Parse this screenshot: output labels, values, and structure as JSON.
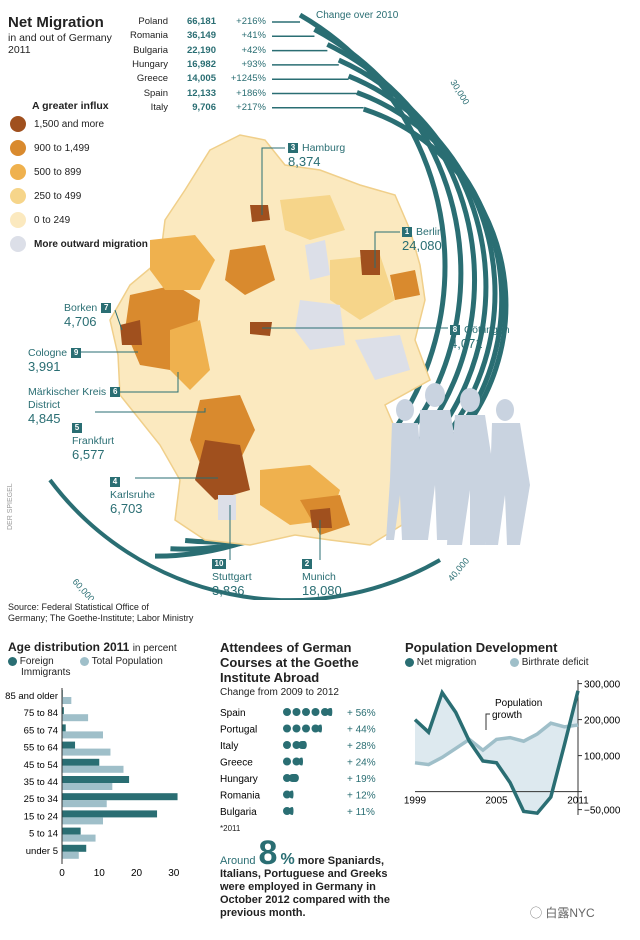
{
  "header": {
    "title": "Net Migration",
    "subtitle_line1": "in and out of Germany",
    "subtitle_line2": "2011",
    "change_label": "Change over 2010",
    "ring_label_30k": "30,000",
    "ring_label_40k": "40,000",
    "ring_label_60k": "60,000"
  },
  "countries": [
    {
      "name": "Poland",
      "value": "66,181",
      "change": "+216%"
    },
    {
      "name": "Romania",
      "value": "36,149",
      "change": "+41%"
    },
    {
      "name": "Bulgaria",
      "value": "22,190",
      "change": "+42%"
    },
    {
      "name": "Hungary",
      "value": "16,982",
      "change": "+93%"
    },
    {
      "name": "Greece",
      "value": "14,005",
      "change": "+1245%"
    },
    {
      "name": "Spain",
      "value": "12,133",
      "change": "+186%"
    },
    {
      "name": "Italy",
      "value": "9,706",
      "change": "+217%"
    }
  ],
  "legend": {
    "title": "A greater influx",
    "items": [
      {
        "label": "1,500 and more",
        "color": "#a0501e"
      },
      {
        "label": "900 to 1,499",
        "color": "#d98a2e"
      },
      {
        "label": "500 to 899",
        "color": "#efb14e"
      },
      {
        "label": "250 to 499",
        "color": "#f6d58a"
      },
      {
        "label": "0 to 249",
        "color": "#fbe9bf"
      },
      {
        "label": "More outward migration",
        "color": "#dcdfe8"
      }
    ]
  },
  "cities": [
    {
      "num": "3",
      "name": "Hamburg",
      "value": "8,374"
    },
    {
      "num": "1",
      "name": "Berlin",
      "value": "24,080"
    },
    {
      "num": "7",
      "name": "Borken",
      "value": "4,706"
    },
    {
      "num": "8",
      "name": "Göttingen",
      "value": "4,071"
    },
    {
      "num": "9",
      "name": "Cologne",
      "value": "3,991"
    },
    {
      "num": "6",
      "name": "Märkischer Kreis",
      "name2": "District",
      "value": "4,845"
    },
    {
      "num": "5",
      "name": "Frankfurt",
      "value": "6,577"
    },
    {
      "num": "4",
      "name": "Karlsruhe",
      "value": "6,703"
    },
    {
      "num": "10",
      "name": "Stuttgart",
      "value": "3,836"
    },
    {
      "num": "2",
      "name": "Munich",
      "value": "18,080"
    }
  ],
  "watermark_side": "DER SPIEGEL",
  "source": {
    "line1": "Source: Federal Statistical Office of",
    "line2": "Germany; The Goethe-Institute; Labor Ministry"
  },
  "colors": {
    "teal": "#2a6e73",
    "light_blue": "#9fbfc9",
    "silhouette": "#c9d3e0"
  },
  "age_chart": {
    "title": "Age distribution 2011",
    "title_suffix": "in percent",
    "legend": [
      "Foreign Immigrants",
      "Total Population"
    ],
    "legend_foreign_line1": "Foreign",
    "legend_foreign_line2": "Immigrants",
    "chart_data": {
      "type": "bar",
      "orientation": "horizontal",
      "categories": [
        "85 and older",
        "75 to 84",
        "65 to 74",
        "55 to 64",
        "45 to 54",
        "35 to 44",
        "25 to 34",
        "15 to 24",
        "5 to 14",
        "under 5"
      ],
      "series": [
        {
          "name": "Foreign Immigrants",
          "values": [
            0.2,
            0.5,
            1,
            3.5,
            10,
            18,
            31,
            25.5,
            5,
            6.5
          ]
        },
        {
          "name": "Total Population",
          "values": [
            2.5,
            7,
            11,
            13,
            16.5,
            13.5,
            12,
            11,
            9,
            4.5
          ]
        }
      ],
      "xticks": [
        "0",
        "10",
        "20",
        "30"
      ],
      "xlim": [
        0,
        33
      ]
    }
  },
  "goethe": {
    "title_line1": "Attendees of German",
    "title_line2": "Courses at the Goethe",
    "title_line3": "Institute Abroad",
    "subtitle": "Change from 2009 to 2012",
    "footnote": "*2011",
    "chart_data": {
      "type": "bar",
      "categories": [
        "Spain",
        "Portugal",
        "Italy",
        "Greece",
        "Hungary",
        "Romania",
        "Bulgaria"
      ],
      "values": [
        56,
        44,
        28,
        24,
        19,
        12,
        11
      ],
      "labels": [
        "+ 56%",
        "+ 44%",
        "+ 28%",
        "+ 24%",
        "+ 19%",
        "+ 12%",
        "+ 11%"
      ]
    },
    "highlight_prefix": "Around",
    "highlight_number": "8",
    "highlight_percent": "%",
    "highlight_rest": "more Spaniards,",
    "highlight_line2": "Italians, Portuguese and Greeks",
    "highlight_line3": "were employed in Germany in",
    "highlight_line4": "October 2012 compared with the",
    "highlight_line5": "previous month."
  },
  "population": {
    "title": "Population Development",
    "legend": [
      "Net migration",
      "Birthrate deficit"
    ],
    "annotation_line1": "Population",
    "annotation_line2": "growth",
    "chart_data": {
      "type": "line",
      "x": [
        1999,
        2000,
        2001,
        2002,
        2003,
        2004,
        2005,
        2006,
        2007,
        2008,
        2009,
        2010,
        2011
      ],
      "series": [
        {
          "name": "Net migration",
          "values": [
            200000,
            165000,
            275000,
            220000,
            140000,
            85000,
            80000,
            25000,
            -55000,
            -60000,
            -15000,
            130000,
            280000
          ]
        },
        {
          "name": "Birthrate deficit",
          "values": [
            80000,
            75000,
            95000,
            120000,
            145000,
            115000,
            145000,
            150000,
            140000,
            160000,
            190000,
            180000,
            185000
          ]
        }
      ],
      "xticks": [
        "1999",
        "2005",
        "2011"
      ],
      "yticks": [
        "300,000",
        "200,000",
        "100,000",
        "0",
        "−50,000"
      ],
      "ylim": [
        -65000,
        310000
      ]
    }
  },
  "footer_watermark": "白露NYC"
}
